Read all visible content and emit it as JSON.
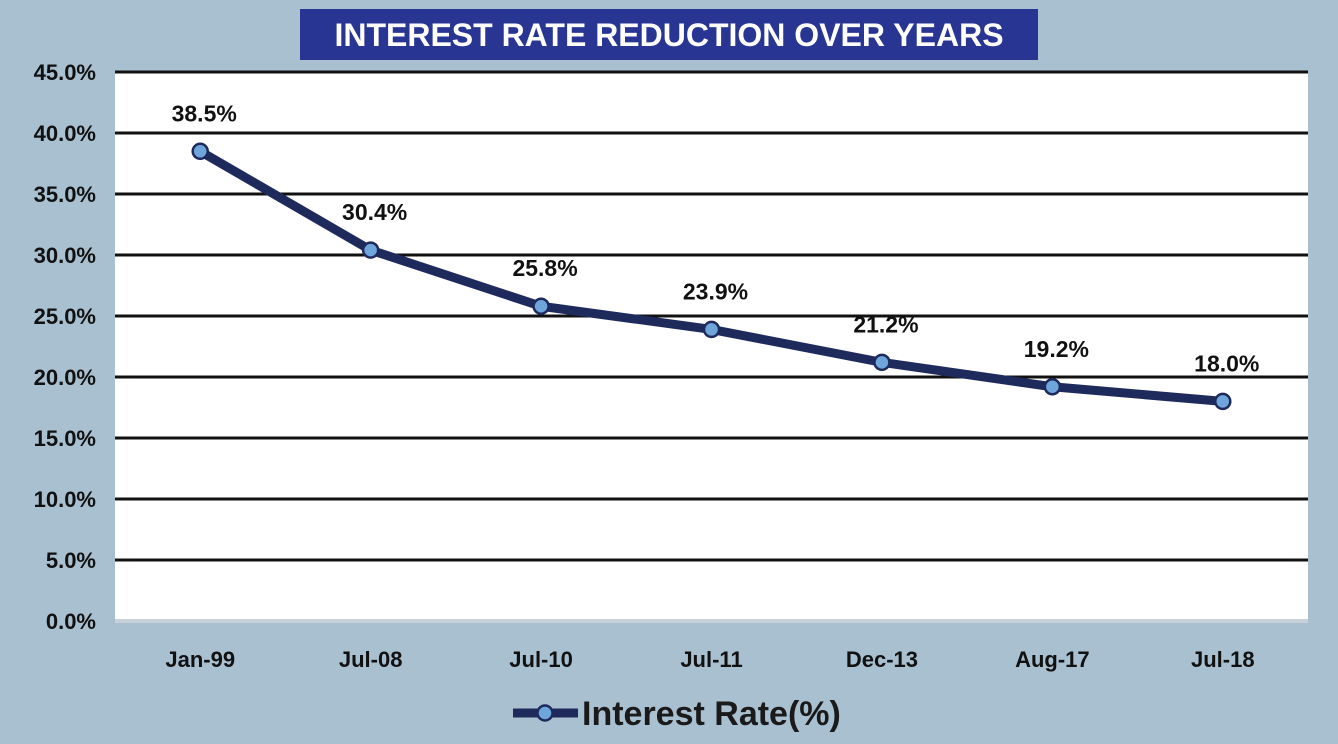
{
  "chart_data": {
    "type": "line",
    "title": "INTEREST RATE REDUCTION OVER YEARS",
    "categories": [
      "Jan-99",
      "Jul-08",
      "Jul-10",
      "Jul-11",
      "Dec-13",
      "Aug-17",
      "Jul-18"
    ],
    "series": [
      {
        "name": "Interest Rate(%)",
        "values": [
          38.5,
          30.4,
          25.8,
          23.9,
          21.2,
          19.2,
          18.0
        ],
        "labels": [
          "38.5%",
          "30.4%",
          "25.8%",
          "23.9%",
          "21.2%",
          "19.2%",
          "18.0%"
        ]
      }
    ],
    "ylim": [
      0,
      45
    ],
    "yticks": [
      0,
      5,
      10,
      15,
      20,
      25,
      30,
      35,
      40,
      45
    ],
    "ytick_labels": [
      "0.0%",
      "5.0%",
      "10.0%",
      "15.0%",
      "20.0%",
      "25.0%",
      "30.0%",
      "35.0%",
      "40.0%",
      "45.0%"
    ],
    "xlabel": "",
    "ylabel": "",
    "grid": true,
    "legend_position": "bottom",
    "colors": {
      "background": "#a8c0d0",
      "plot_area": "#ffffff",
      "title_box": "#283593",
      "line": "#1f2a5c",
      "marker_fill": "#6ea6dc",
      "gridline": "#111111"
    }
  }
}
